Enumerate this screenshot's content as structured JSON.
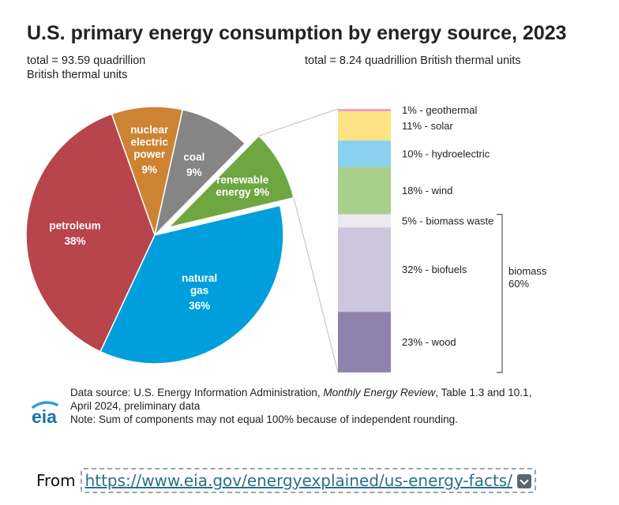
{
  "chart_data": {
    "type": "pie",
    "title": "U.S. primary energy consumption by energy source, 2023",
    "pie": {
      "subtitle": "total = 93.59 quadrillion British thermal units",
      "unit": "%",
      "slices": [
        {
          "label": "petroleum",
          "value": 38,
          "display": "38%",
          "color": "#b8444c",
          "exploded": false
        },
        {
          "label": "nuclear electric power",
          "value": 9,
          "display": "9%",
          "color": "#cc8432",
          "exploded": false
        },
        {
          "label": "coal",
          "value": 9,
          "display": "9%",
          "color": "#858585",
          "exploded": false
        },
        {
          "label": "renewable energy",
          "value": 9,
          "display": "9%",
          "color": "#6ea741",
          "exploded": true
        },
        {
          "label": "natural gas",
          "value": 36,
          "display": "36%",
          "color": "#009fdc",
          "exploded": false
        }
      ]
    },
    "stack": {
      "type": "stacked-bar",
      "subtitle": "total = 8.24 quadrillion British thermal units",
      "unit": "%",
      "segments": [
        {
          "label": "geothermal",
          "value": 1,
          "text": "1% - geothermal",
          "color": "#e9a7b9"
        },
        {
          "label": "solar",
          "value": 11,
          "text": "11% - solar",
          "color": "#fde384"
        },
        {
          "label": "hydroelectric",
          "value": 10,
          "text": "10% - hydroelectric",
          "color": "#8ad0ef"
        },
        {
          "label": "wind",
          "value": 18,
          "text": "18% - wind",
          "color": "#a9cf8c"
        },
        {
          "label": "biomass waste",
          "value": 5,
          "text": "5% - biomass waste",
          "color": "#ebe8f2"
        },
        {
          "label": "biofuels",
          "value": 32,
          "text": "32% - biofuels",
          "color": "#ccc7dc"
        },
        {
          "label": "wood",
          "value": 23,
          "text": "23% - wood",
          "color": "#8f83ae"
        }
      ],
      "group": {
        "label": "biomass",
        "value": "60%",
        "members": [
          "biomass waste",
          "biofuels",
          "wood"
        ]
      }
    }
  },
  "footer": {
    "source_prefix": "Data source: U.S. Energy Information Administration, ",
    "source_title": "Monthly Energy Review",
    "source_suffix": ", Table 1.3 and 10.1,",
    "source_line2": "April 2024, preliminary data",
    "note": "Note: Sum of components may not equal 100% because of independent rounding.",
    "logo_text": "eia"
  },
  "caption": {
    "prefix": "From",
    "link_text": "https://www.eia.gov/energyexplained/us-energy-facts/",
    "dropdown_icon": "chevron-down-icon"
  }
}
